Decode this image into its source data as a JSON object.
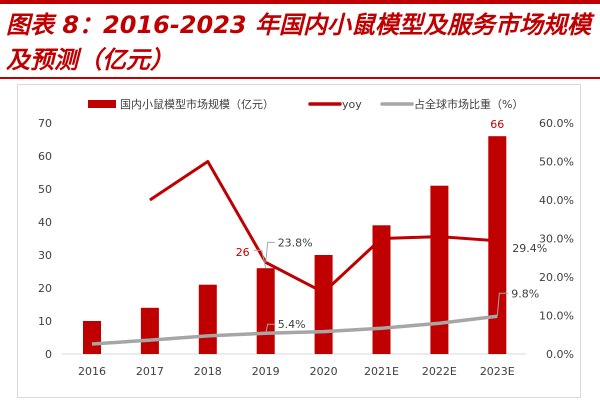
{
  "title": "图表 8：2016-2023 年国内小鼠模型及服务市场规模及预测（亿元）",
  "chart_data": {
    "type": "bar+line",
    "categories": [
      "2016",
      "2017",
      "2018",
      "2019",
      "2020",
      "2021E",
      "2022E",
      "2023E"
    ],
    "series": [
      {
        "name": "国内小鼠模型市场规模（亿元）",
        "type": "bar",
        "axis": "left",
        "color": "#c00000",
        "values": [
          10,
          14,
          21,
          26,
          30,
          39,
          51,
          66
        ]
      },
      {
        "name": "yoy",
        "type": "line",
        "axis": "right",
        "color": "#c00000",
        "values": [
          null,
          40.0,
          50.0,
          23.8,
          16.0,
          30.0,
          30.5,
          29.4
        ]
      },
      {
        "name": "占全球市场比重（%）",
        "type": "line",
        "axis": "right",
        "color": "#a6a6a6",
        "values": [
          2.6,
          3.6,
          4.7,
          5.4,
          5.8,
          6.7,
          8.0,
          9.8
        ]
      }
    ],
    "left_axis": {
      "ylim": [
        0,
        70
      ],
      "ticks": [
        "0",
        "10",
        "20",
        "30",
        "40",
        "50",
        "60",
        "70"
      ]
    },
    "right_axis": {
      "ylim": [
        0,
        60
      ],
      "ticks": [
        "0.0%",
        "10.0%",
        "20.0%",
        "30.0%",
        "40.0%",
        "50.0%",
        "60.0%"
      ]
    },
    "data_labels": [
      {
        "series": 0,
        "index": 3,
        "text": "26",
        "color": "#c00000"
      },
      {
        "series": 0,
        "index": 7,
        "text": "66",
        "color": "#c00000"
      },
      {
        "series": 1,
        "index": 3,
        "text": "23.8%"
      },
      {
        "series": 1,
        "index": 7,
        "text": "29.4%"
      },
      {
        "series": 2,
        "index": 3,
        "text": "5.4%"
      },
      {
        "series": 2,
        "index": 7,
        "text": "9.8%"
      }
    ],
    "legend": "top",
    "grid": false
  }
}
